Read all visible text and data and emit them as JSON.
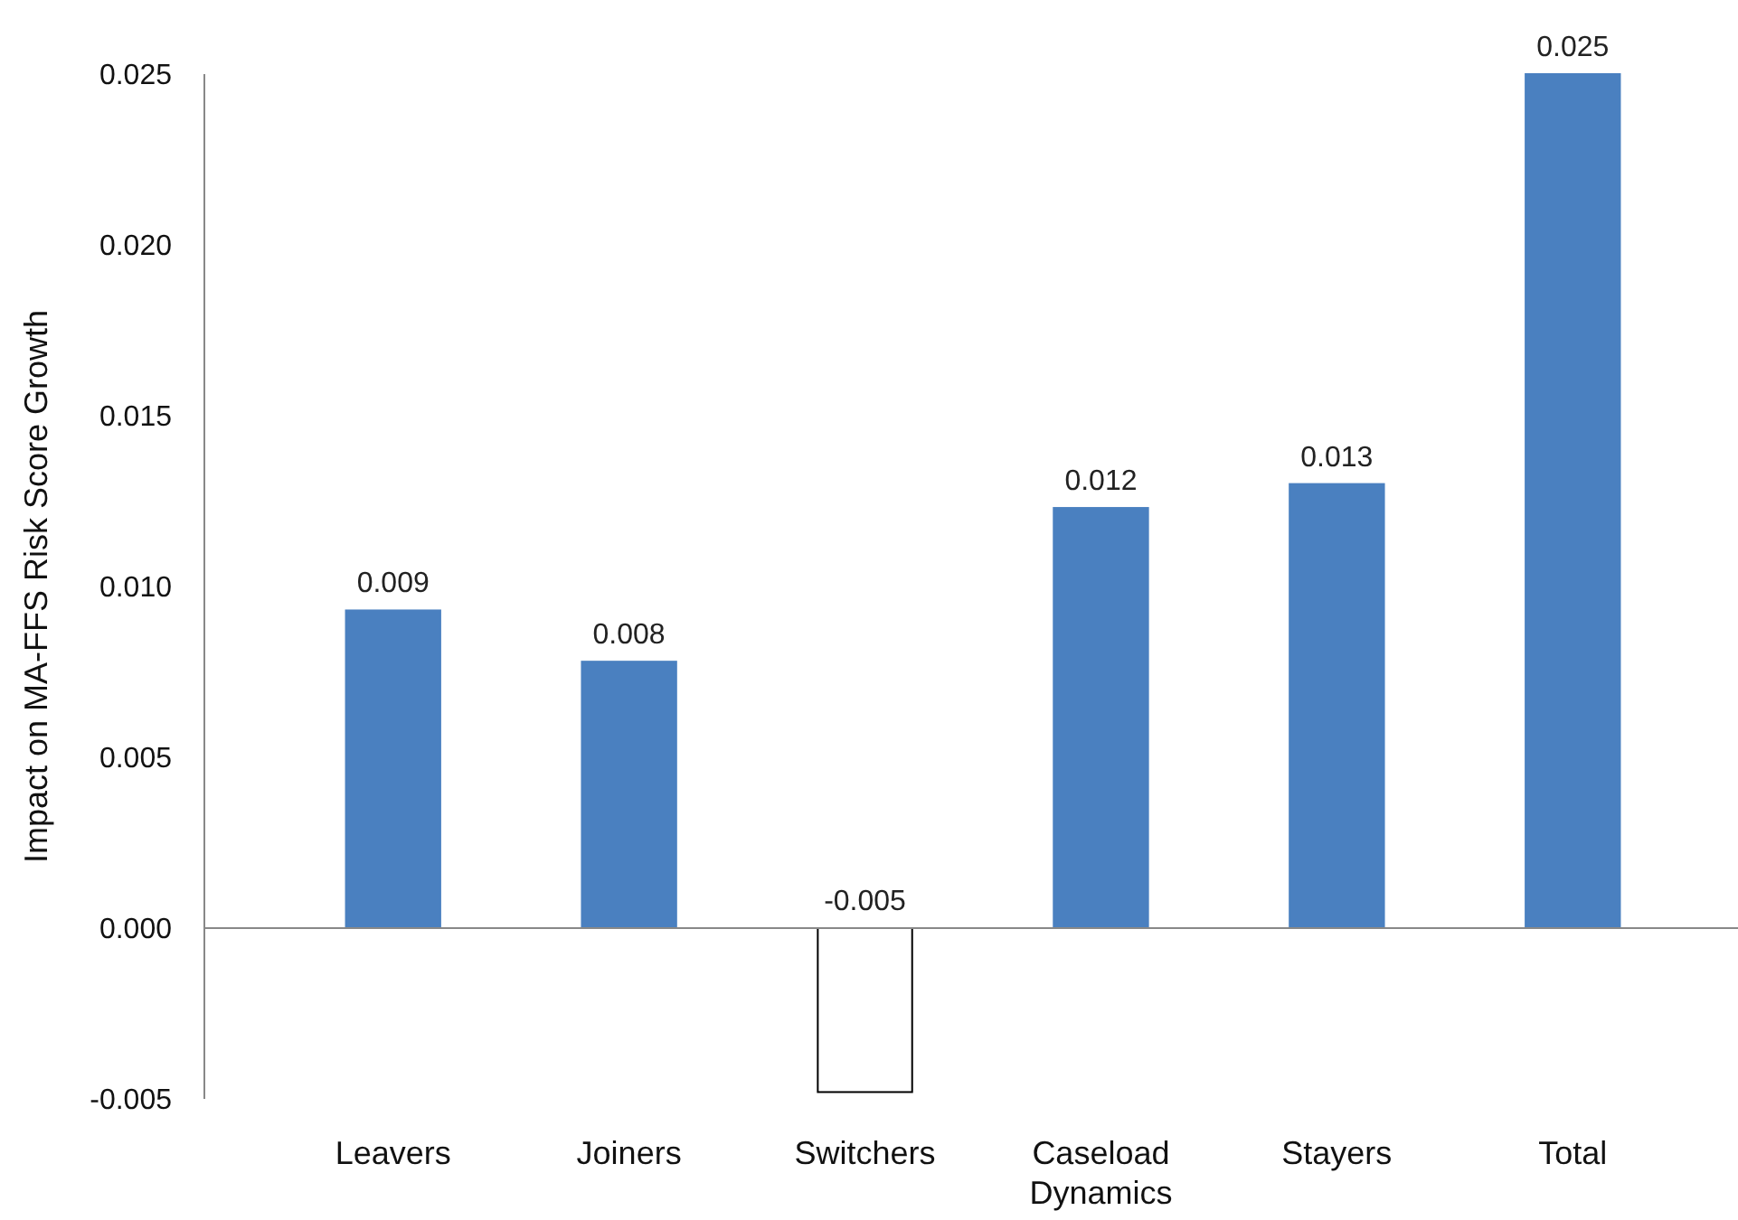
{
  "chart_data": {
    "type": "bar",
    "ylabel": "Impact on MA-FFS Risk Score Growth",
    "categories": [
      "Leavers",
      "Joiners",
      "Switchers",
      "Caseload Dynamics",
      "Stayers",
      "Total"
    ],
    "values": [
      0.0093,
      0.0078,
      -0.0048,
      0.0123,
      0.013,
      0.025
    ],
    "value_labels": [
      "0.009",
      "0.008",
      "-0.005",
      "0.012",
      "0.013",
      "0.025"
    ],
    "colors": [
      "#4a80c0",
      "#4a80c0",
      "#ffffff",
      "#4a80c0",
      "#4a80c0",
      "#4a80c0"
    ],
    "ylim": [
      -0.005,
      0.025
    ],
    "yticks": [
      {
        "value": -0.005,
        "label": "-0.005"
      },
      {
        "value": 0,
        "label": "0.000"
      },
      {
        "value": 0.005,
        "label": "0.005"
      },
      {
        "value": 0.01,
        "label": "0.010"
      },
      {
        "value": 0.015,
        "label": "0.015"
      },
      {
        "value": 0.02,
        "label": "0.020"
      },
      {
        "value": 0.025,
        "label": "0.025"
      }
    ],
    "tick_labels": true
  }
}
